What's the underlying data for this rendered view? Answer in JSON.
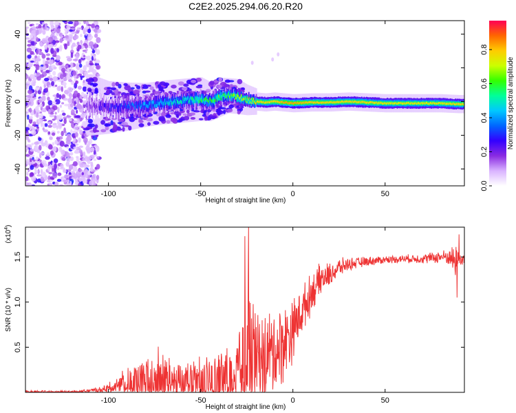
{
  "title": "C2E2.2025.294.06.20.R20",
  "chart_data": [
    {
      "type": "heatmap",
      "name": "spectrogram",
      "xlabel": "Height of straight line (km)",
      "ylabel": "Frequency (Hz)",
      "xlim": [
        -145,
        93
      ],
      "ylim": [
        -50,
        48
      ],
      "xticks": [
        -100,
        -50,
        0,
        50
      ],
      "xtick_labels": [
        "-100",
        "-50",
        "0",
        "50"
      ],
      "yticks": [
        -40,
        -20,
        0,
        20,
        40
      ],
      "ytick_labels": [
        "-40",
        "-20",
        "0",
        "20",
        "40"
      ],
      "colorbar": {
        "label": "Normalized spectral amplitude",
        "range": [
          0,
          0.97
        ],
        "ticks": [
          0.0,
          0.2,
          0.4,
          0.6,
          0.8
        ],
        "tick_labels": [
          "0.0",
          "0.2",
          "0.4",
          "0.6",
          "0.8"
        ],
        "colors": [
          "#ffffff",
          "#d9b3ff",
          "#8a2be2",
          "#3300ff",
          "#0066ff",
          "#00c8ff",
          "#00ff99",
          "#33ff00",
          "#ccff00",
          "#ffcc00",
          "#ff6600",
          "#ff0055"
        ]
      },
      "ridge": {
        "x": [
          -110,
          -100,
          -90,
          -80,
          -70,
          -60,
          -50,
          -45,
          -40,
          -35,
          -30,
          -25,
          -20,
          -15,
          -10,
          -5,
          0,
          10,
          20,
          30,
          40,
          50,
          60,
          70,
          80,
          90
        ],
        "freq": [
          -2.0,
          -3.5,
          -3.0,
          -2.0,
          -0.5,
          0.5,
          1.5,
          0.0,
          2.5,
          3.5,
          3.0,
          1.0,
          0.0,
          -0.5,
          0.0,
          -0.5,
          -1.0,
          -0.5,
          -0.5,
          0.0,
          -0.5,
          -1.0,
          -1.0,
          -1.0,
          -1.0,
          -1.5
        ],
        "amplitude": [
          0.15,
          0.22,
          0.3,
          0.35,
          0.4,
          0.45,
          0.5,
          0.5,
          0.55,
          0.55,
          0.6,
          0.65,
          0.7,
          0.7,
          0.7,
          0.75,
          0.75,
          0.72,
          0.7,
          0.7,
          0.7,
          0.68,
          0.68,
          0.68,
          0.68,
          0.7
        ],
        "width_hz": [
          14,
          12,
          11,
          10,
          10,
          10,
          10,
          9,
          9,
          8,
          8,
          7,
          6,
          6,
          6,
          6,
          6,
          6,
          6,
          6,
          6,
          6,
          6,
          6,
          6,
          6
        ]
      },
      "noise_region_x": [
        -145,
        -110
      ],
      "noise_amplitude": 0.12
    },
    {
      "type": "line",
      "name": "snr",
      "xlabel": "Height of straight line (km)",
      "ylabel": "SNR (10 * v/v)",
      "y_multiplier_label": "(x10",
      "y_multiplier_exp": "4",
      "xlim": [
        -145,
        93
      ],
      "ylim": [
        0,
        1.83
      ],
      "xticks": [
        -100,
        -50,
        0,
        50
      ],
      "xtick_labels": [
        "-100",
        "-50",
        "0",
        "50"
      ],
      "yticks": [
        0.5,
        1.0,
        1.5
      ],
      "ytick_labels": [
        "0.5",
        "1.0",
        "1.5"
      ],
      "line_color": "#ee3333",
      "envelope": {
        "x": [
          -145,
          -120,
          -110,
          -102,
          -95,
          -90,
          -80,
          -73,
          -70,
          -60,
          -55,
          -50,
          -45,
          -40,
          -32,
          -28,
          -25,
          -23,
          -20,
          -15,
          -10,
          -5,
          0,
          5,
          10,
          15,
          20,
          25,
          30,
          40,
          50,
          60,
          70,
          80,
          85,
          88,
          90,
          93
        ],
        "baseline": [
          0.0,
          0.0,
          0.02,
          0.03,
          0.08,
          0.1,
          0.1,
          0.15,
          0.12,
          0.1,
          0.12,
          0.1,
          0.12,
          0.12,
          0.2,
          0.3,
          0.4,
          0.42,
          0.38,
          0.4,
          0.45,
          0.55,
          0.7,
          0.9,
          1.1,
          1.25,
          1.3,
          1.38,
          1.42,
          1.45,
          1.47,
          1.48,
          1.48,
          1.5,
          1.5,
          1.45,
          1.48,
          1.47
        ],
        "amplitude": [
          0.01,
          0.01,
          0.02,
          0.05,
          0.12,
          0.2,
          0.3,
          0.45,
          0.35,
          0.25,
          0.35,
          0.3,
          0.3,
          0.35,
          0.45,
          0.6,
          1.35,
          0.8,
          0.55,
          0.55,
          0.55,
          0.5,
          0.4,
          0.3,
          0.25,
          0.2,
          0.15,
          0.12,
          0.08,
          0.06,
          0.05,
          0.05,
          0.06,
          0.08,
          0.1,
          0.25,
          0.1,
          0.08
        ]
      },
      "peaks": [
        {
          "x": -24,
          "y": 1.83
        },
        {
          "x": -26,
          "y": 1.73
        },
        {
          "x": 90,
          "y": 1.75
        },
        {
          "x": 89,
          "y": 1.05
        }
      ]
    }
  ]
}
